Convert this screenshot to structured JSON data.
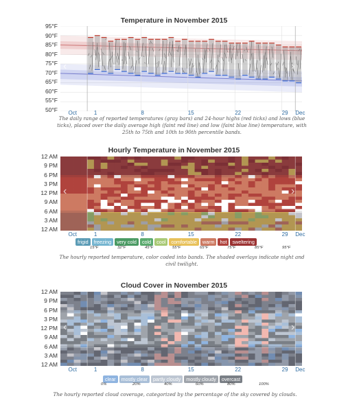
{
  "chart_data": [
    {
      "type": "bar",
      "title": "Temperature in November 2015",
      "y_ticks": [
        "95°F",
        "90°F",
        "85°F",
        "80°F",
        "75°F",
        "70°F",
        "65°F",
        "60°F",
        "55°F",
        "50°F"
      ],
      "ylim": [
        50,
        95
      ],
      "x_labels": [
        "Oct",
        "1",
        "8",
        "15",
        "22",
        "29",
        "Dec"
      ],
      "caption": "The daily range of reported temperatures (gray bars) and 24-hour highs (red ticks) and lows (blue ticks), placed over the daily average high (faint red line) and low (faint blue line) temperature, with 25th to 75th and 10th to 90th percentile bands.",
      "daily_ranges": [
        [
          70,
          89
        ],
        [
          72,
          90
        ],
        [
          71,
          89
        ],
        [
          70,
          87
        ],
        [
          72,
          88
        ],
        [
          71,
          88
        ],
        [
          70,
          89
        ],
        [
          69,
          88
        ],
        [
          71,
          89
        ],
        [
          70,
          88
        ],
        [
          69,
          88
        ],
        [
          70,
          88
        ],
        [
          71,
          89
        ],
        [
          70,
          87
        ],
        [
          70,
          88
        ],
        [
          69,
          87
        ],
        [
          68,
          87
        ],
        [
          70,
          87
        ],
        [
          71,
          88
        ],
        [
          69,
          87
        ],
        [
          69,
          87
        ],
        [
          68,
          86
        ],
        [
          67,
          86
        ],
        [
          69,
          86
        ],
        [
          68,
          87
        ],
        [
          67,
          86
        ],
        [
          67,
          86
        ],
        [
          68,
          86
        ],
        [
          67,
          85
        ],
        [
          66,
          84
        ],
        [
          66,
          84
        ],
        [
          65,
          84
        ]
      ],
      "avg_high": [
        85,
        82
      ],
      "avg_low": [
        70,
        66
      ],
      "grid": true
    },
    {
      "type": "heatmap",
      "title": "Hourly Temperature in November 2015",
      "y_ticks": [
        "12 AM",
        "9 PM",
        "6 PM",
        "3 PM",
        "12 PM",
        "9 AM",
        "6 AM",
        "3 AM",
        "12 AM"
      ],
      "x_labels": [
        "Oct",
        "1",
        "8",
        "15",
        "22",
        "29",
        "Dec"
      ],
      "legend": [
        {
          "label": "frigid",
          "color": "#5b9bb5"
        },
        {
          "label": "freezing",
          "color": "#75b5d0"
        },
        {
          "label": "very cold",
          "color": "#4a9a63"
        },
        {
          "label": "cold",
          "color": "#5aaa6e"
        },
        {
          "label": "cool",
          "color": "#a9c975"
        },
        {
          "label": "comfortable",
          "color": "#e8c15a"
        },
        {
          "label": "warm",
          "color": "#cd7a62"
        },
        {
          "label": "hot",
          "color": "#b0433d"
        },
        {
          "label": "sweltering",
          "color": "#9b3232"
        }
      ],
      "legend_ticks": [
        "15°F",
        "32°F",
        "45°F",
        "55°F",
        "65°F",
        "75°F",
        "85°F",
        "95°F"
      ],
      "caption": "The hourly reported temperature, color coded into bands. The shaded overlays indicate night and civil twilight."
    },
    {
      "type": "heatmap",
      "title": "Cloud Cover in November 2015",
      "y_ticks": [
        "12 AM",
        "9 PM",
        "6 PM",
        "3 PM",
        "12 PM",
        "9 AM",
        "6 AM",
        "3 AM",
        "12 AM"
      ],
      "x_labels": [
        "Oct",
        "1",
        "8",
        "15",
        "22",
        "29",
        "Dec"
      ],
      "legend": [
        {
          "label": "clear",
          "color": "#8fb4e0"
        },
        {
          "label": "mostly clear",
          "color": "#a9bfd8"
        },
        {
          "label": "partly cloudy",
          "color": "#bdc6d2"
        },
        {
          "label": "mostly cloudy",
          "color": "#9fa4ab"
        },
        {
          "label": "overcast",
          "color": "#7a7f86"
        }
      ],
      "legend_ticks": [
        "0%",
        "20%",
        "40%",
        "60%",
        "80%",
        "100%"
      ],
      "caption": "The hourly reported cloud coverage, categorized by the percentage of the sky covered by clouds."
    }
  ]
}
